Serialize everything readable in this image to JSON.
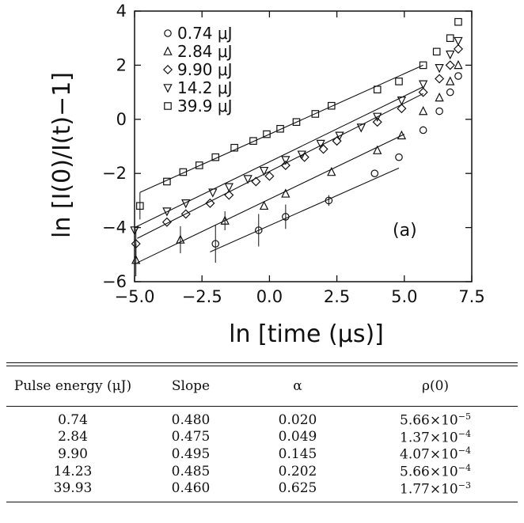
{
  "chart_data": {
    "type": "scatter",
    "xlabel": "ln [time (μs)]",
    "ylabel": "ln [I(0)/I(t)−1]",
    "xlim": [
      -5,
      7.5
    ],
    "ylim": [
      -6,
      4
    ],
    "xticks": [
      -5.0,
      -2.5,
      0.0,
      2.5,
      5.0,
      7.5
    ],
    "xticklabels": [
      "−5.0",
      "−2.5",
      "0.0",
      "2.5",
      "5.0",
      "7.5"
    ],
    "yticks": [
      -6,
      -4,
      -2,
      0,
      2,
      4
    ],
    "yticklabels": [
      "−6",
      "−4",
      "−2",
      "0",
      "2",
      "4"
    ],
    "legend_position": "top-left",
    "annotation": "(a)",
    "series": [
      {
        "name": "0.74 μJ",
        "marker": "circle",
        "points": [
          [
            -2.0,
            -4.6
          ],
          [
            -0.4,
            -4.1
          ],
          [
            0.6,
            -3.6
          ],
          [
            2.2,
            -3.0
          ],
          [
            3.9,
            -2.0
          ],
          [
            4.8,
            -1.4
          ],
          [
            5.7,
            -0.4
          ],
          [
            6.3,
            0.3
          ],
          [
            6.7,
            1.0
          ],
          [
            7.0,
            1.6
          ]
        ],
        "fit": [
          [
            -2.2,
            -4.9
          ],
          [
            4.8,
            -1.8
          ]
        ]
      },
      {
        "name": "2.84 μJ",
        "marker": "triangle-up",
        "points": [
          [
            -4.95,
            -5.2
          ],
          [
            -3.3,
            -4.45
          ],
          [
            -1.65,
            -3.75
          ],
          [
            -0.2,
            -3.2
          ],
          [
            0.6,
            -2.75
          ],
          [
            2.3,
            -1.95
          ],
          [
            4.0,
            -1.15
          ],
          [
            4.9,
            -0.6
          ],
          [
            5.7,
            0.3
          ],
          [
            6.3,
            0.8
          ],
          [
            6.7,
            1.4
          ],
          [
            7.0,
            2.0
          ]
        ],
        "fit": [
          [
            -4.9,
            -5.3
          ],
          [
            5.0,
            -0.55
          ]
        ]
      },
      {
        "name": "9.90 μJ",
        "marker": "diamond",
        "points": [
          [
            -4.95,
            -4.6
          ],
          [
            -3.8,
            -3.8
          ],
          [
            -3.1,
            -3.5
          ],
          [
            -2.2,
            -3.1
          ],
          [
            -1.5,
            -2.8
          ],
          [
            -0.5,
            -2.3
          ],
          [
            0.0,
            -2.1
          ],
          [
            0.6,
            -1.7
          ],
          [
            1.3,
            -1.4
          ],
          [
            2.0,
            -1.1
          ],
          [
            2.5,
            -0.8
          ],
          [
            4.0,
            -0.1
          ],
          [
            4.9,
            0.4
          ],
          [
            5.7,
            1.0
          ],
          [
            6.3,
            1.5
          ],
          [
            6.7,
            2.0
          ],
          [
            7.0,
            2.6
          ]
        ],
        "fit": [
          [
            -4.9,
            -4.4
          ],
          [
            5.7,
            0.95
          ]
        ]
      },
      {
        "name": "14.2 μJ",
        "marker": "triangle-down",
        "points": [
          [
            -5.0,
            -4.1
          ],
          [
            -3.8,
            -3.4
          ],
          [
            -3.1,
            -3.1
          ],
          [
            -2.1,
            -2.7
          ],
          [
            -1.5,
            -2.5
          ],
          [
            -0.8,
            -2.2
          ],
          [
            -0.2,
            -1.9
          ],
          [
            0.6,
            -1.5
          ],
          [
            1.2,
            -1.3
          ],
          [
            1.9,
            -0.9
          ],
          [
            2.6,
            -0.6
          ],
          [
            3.4,
            -0.3
          ],
          [
            4.0,
            0.1
          ],
          [
            4.9,
            0.7
          ],
          [
            5.7,
            1.3
          ],
          [
            6.3,
            1.9
          ],
          [
            6.7,
            2.4
          ],
          [
            7.0,
            2.9
          ]
        ],
        "fit": [
          [
            -5.0,
            -4.0
          ],
          [
            5.7,
            1.2
          ]
        ]
      },
      {
        "name": "39.9 μJ",
        "marker": "square",
        "points": [
          [
            -4.8,
            -3.2
          ],
          [
            -3.8,
            -2.3
          ],
          [
            -3.2,
            -1.95
          ],
          [
            -2.6,
            -1.7
          ],
          [
            -2.0,
            -1.4
          ],
          [
            -1.3,
            -1.05
          ],
          [
            -0.6,
            -0.8
          ],
          [
            -0.1,
            -0.55
          ],
          [
            0.4,
            -0.35
          ],
          [
            1.0,
            -0.1
          ],
          [
            1.7,
            0.2
          ],
          [
            2.3,
            0.5
          ],
          [
            4.0,
            1.1
          ],
          [
            4.8,
            1.4
          ],
          [
            5.7,
            2.0
          ],
          [
            6.2,
            2.5
          ],
          [
            6.7,
            3.0
          ],
          [
            7.0,
            3.6
          ]
        ],
        "fit": [
          [
            -4.8,
            -2.7
          ],
          [
            5.7,
            2.0
          ]
        ]
      }
    ]
  },
  "table": {
    "headers": [
      "Pulse energy (μJ)",
      "Slope",
      "α",
      "ρ(0)"
    ],
    "rows": [
      {
        "energy": "0.74",
        "slope": "0.480",
        "alpha": "0.020",
        "rho_mant": "5.66×10",
        "rho_exp": "−5"
      },
      {
        "energy": "2.84",
        "slope": "0.475",
        "alpha": "0.049",
        "rho_mant": "1.37×10",
        "rho_exp": "−4"
      },
      {
        "energy": "9.90",
        "slope": "0.495",
        "alpha": "0.145",
        "rho_mant": "4.07×10",
        "rho_exp": "−4"
      },
      {
        "energy": "14.23",
        "slope": "0.485",
        "alpha": "0.202",
        "rho_mant": "5.66×10",
        "rho_exp": "−4"
      },
      {
        "energy": "39.93",
        "slope": "0.460",
        "alpha": "0.625",
        "rho_mant": "1.77×10",
        "rho_exp": "−3"
      }
    ]
  }
}
